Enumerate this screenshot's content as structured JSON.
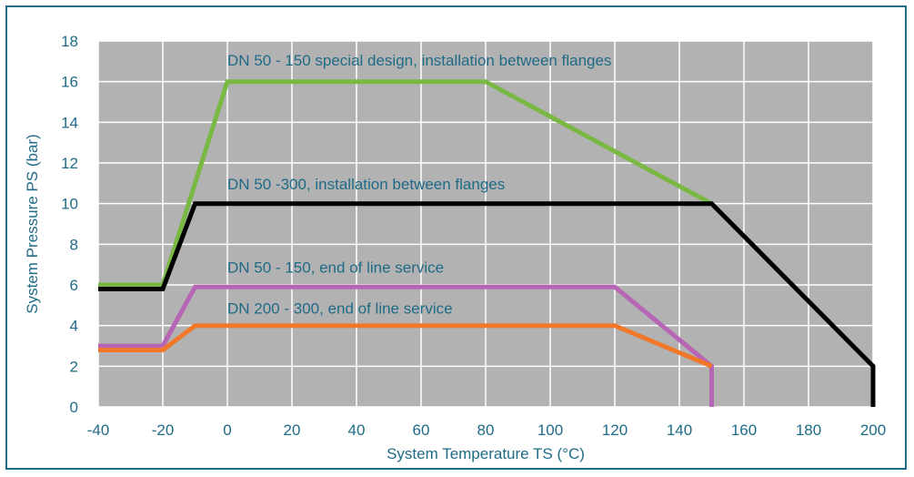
{
  "chart_data": {
    "type": "line",
    "title": "",
    "xlabel": "System Temperature TS (°C)",
    "ylabel": "System Pressure PS (bar)",
    "xlim": [
      -40,
      200
    ],
    "ylim": [
      0,
      18
    ],
    "xticks": [
      -40,
      -20,
      0,
      20,
      40,
      60,
      80,
      100,
      120,
      140,
      160,
      180,
      200
    ],
    "yticks": [
      0,
      2,
      4,
      6,
      8,
      10,
      12,
      14,
      16,
      18
    ],
    "grid": true,
    "legend": "none",
    "colors": {
      "plot_background": "#b2b2b2",
      "grid": "#ffffff",
      "text": "#1f6b86",
      "frame": "#1f6b86"
    },
    "series": [
      {
        "name": "DN 50 - 150 special design, installation between flanges",
        "color": "#78b843",
        "points": [
          [
            -40,
            6
          ],
          [
            -20,
            6
          ],
          [
            0,
            16
          ],
          [
            80,
            16
          ],
          [
            150,
            10
          ]
        ]
      },
      {
        "name": "DN 50 -300, installation between flanges",
        "color": "#000000",
        "points": [
          [
            -40,
            5.8
          ],
          [
            -20,
            5.8
          ],
          [
            -10,
            10
          ],
          [
            150,
            10
          ],
          [
            200,
            2
          ],
          [
            200,
            0
          ]
        ]
      },
      {
        "name": "DN 50 - 150, end of line service",
        "color": "#b766b5",
        "points": [
          [
            -40,
            3
          ],
          [
            -20,
            3
          ],
          [
            -10,
            5.9
          ],
          [
            120,
            5.9
          ],
          [
            150,
            2
          ],
          [
            150,
            0
          ]
        ]
      },
      {
        "name": "DN 200 - 300, end of line service",
        "color": "#f07828",
        "points": [
          [
            -40,
            2.8
          ],
          [
            -20,
            2.8
          ],
          [
            -10,
            4
          ],
          [
            120,
            4
          ],
          [
            150,
            2
          ]
        ]
      }
    ],
    "annotations": [
      {
        "text": "DN 50 - 150 special design, installation between flanges",
        "x": 0,
        "y": 16.8
      },
      {
        "text": "DN 50 -300, installation between flanges",
        "x": 0,
        "y": 10.7
      },
      {
        "text": "DN 50 - 150, end of line service",
        "x": 0,
        "y": 6.6
      },
      {
        "text": "DN 200 - 300, end of line service",
        "x": 0,
        "y": 4.6
      }
    ]
  }
}
